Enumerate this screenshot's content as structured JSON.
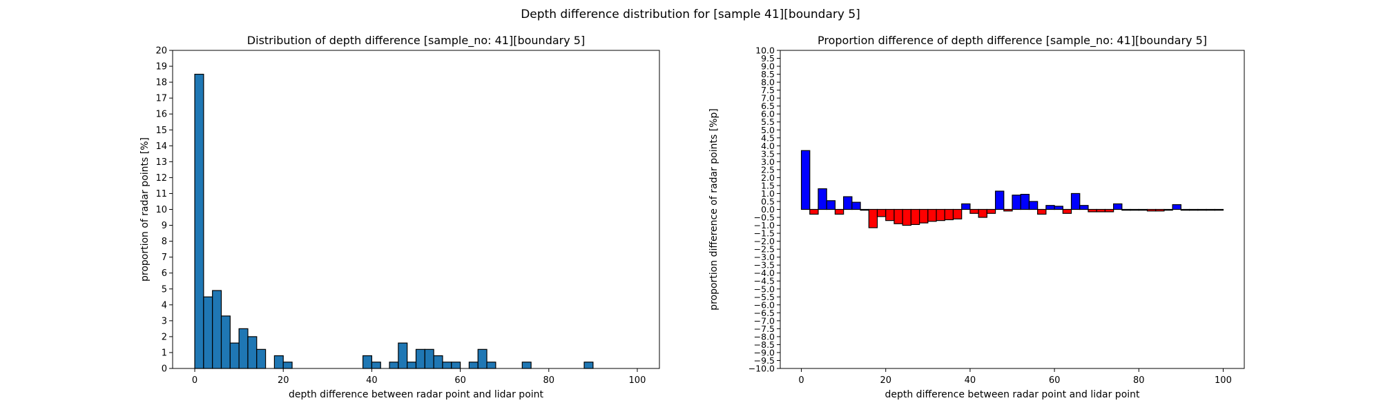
{
  "figure": {
    "suptitle": "Depth difference distribution for [sample 41][boundary 5]"
  },
  "chart_data": [
    {
      "type": "bar",
      "title": "Distribution of depth difference [sample_no: 41][boundary 5]",
      "xlabel": "depth difference between radar point and lidar point",
      "ylabel": "proportion of radar points [%]",
      "xlim": [
        -5,
        105
      ],
      "ylim": [
        0,
        20
      ],
      "xticks": [
        0,
        20,
        40,
        60,
        80,
        100
      ],
      "yticks": [
        0,
        1,
        2,
        3,
        4,
        5,
        6,
        7,
        8,
        9,
        10,
        11,
        12,
        13,
        14,
        15,
        16,
        17,
        18,
        19,
        20
      ],
      "bin_width": 2,
      "color": "#1f77b4",
      "edgecolor": "#000000",
      "bins": [
        0,
        2,
        4,
        6,
        8,
        10,
        12,
        14,
        16,
        18,
        20,
        22,
        24,
        26,
        28,
        30,
        32,
        34,
        36,
        38,
        40,
        42,
        44,
        46,
        48,
        50,
        52,
        54,
        56,
        58,
        60,
        62,
        64,
        66,
        68,
        70,
        72,
        74,
        76,
        78,
        80,
        82,
        84,
        86,
        88,
        90,
        92,
        94,
        96,
        98
      ],
      "values": [
        18.5,
        4.5,
        4.9,
        3.3,
        1.6,
        2.5,
        2.0,
        1.2,
        0,
        0.8,
        0.4,
        0,
        0,
        0,
        0,
        0,
        0,
        0,
        0,
        0.8,
        0.4,
        0,
        0.4,
        1.6,
        0.4,
        1.2,
        1.2,
        0.8,
        0.4,
        0.4,
        0,
        0.4,
        1.2,
        0.4,
        0,
        0,
        0,
        0.4,
        0,
        0,
        0,
        0,
        0,
        0,
        0.4,
        0,
        0,
        0,
        0,
        0
      ]
    },
    {
      "type": "bar",
      "title": "Proportion difference of depth difference [sample_no: 41][boundary 5]",
      "xlabel": "depth difference between radar point and lidar point",
      "ylabel": "proportion difference of radar points [%p]",
      "xlim": [
        -5,
        105
      ],
      "ylim": [
        -10,
        10
      ],
      "xticks": [
        0,
        20,
        40,
        60,
        80,
        100
      ],
      "ytick_step": 0.5,
      "bin_width": 2,
      "positive_color": "#0000ff",
      "negative_color": "#ff0000",
      "edgecolor": "#000000",
      "bins": [
        0,
        2,
        4,
        6,
        8,
        10,
        12,
        14,
        16,
        18,
        20,
        22,
        24,
        26,
        28,
        30,
        32,
        34,
        36,
        38,
        40,
        42,
        44,
        46,
        48,
        50,
        52,
        54,
        56,
        58,
        60,
        62,
        64,
        66,
        68,
        70,
        72,
        74,
        76,
        78,
        80,
        82,
        84,
        86,
        88,
        90,
        92,
        94,
        96,
        98
      ],
      "values": [
        3.7,
        -0.3,
        1.3,
        0.55,
        -0.3,
        0.8,
        0.45,
        -0.05,
        -1.15,
        -0.45,
        -0.7,
        -0.9,
        -1.0,
        -0.95,
        -0.85,
        -0.75,
        -0.7,
        -0.65,
        -0.6,
        0.35,
        -0.25,
        -0.5,
        -0.25,
        1.15,
        -0.1,
        0.9,
        0.95,
        0.5,
        -0.3,
        0.25,
        0.2,
        -0.25,
        1.0,
        0.25,
        -0.15,
        -0.15,
        -0.15,
        0.35,
        -0.05,
        -0.05,
        -0.05,
        -0.1,
        -0.1,
        -0.05,
        0.3,
        -0.05,
        -0.05,
        -0.05,
        -0.05,
        -0.05
      ]
    }
  ]
}
